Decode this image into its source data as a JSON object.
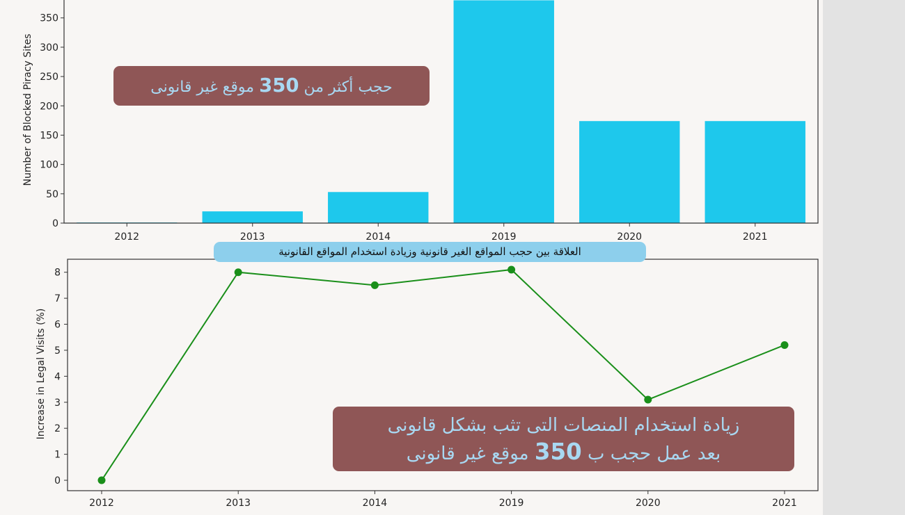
{
  "chart_data": [
    {
      "type": "bar",
      "categories": [
        "2012",
        "2013",
        "2014",
        "2019",
        "2020",
        "2021"
      ],
      "values": [
        1,
        20,
        53,
        380,
        174,
        174
      ],
      "ylabel": "Number of Blocked Piracy Sites",
      "yticks": [
        0,
        50,
        100,
        150,
        200,
        250,
        300,
        350
      ],
      "ylim": [
        0,
        390
      ],
      "color": "#1ec8ec",
      "annotation": {
        "before": "حجب أكثر من ",
        "number": "350",
        "after": " موقع غير قانونى"
      }
    },
    {
      "type": "line",
      "x": [
        "2012",
        "2013",
        "2014",
        "2019",
        "2020",
        "2021"
      ],
      "values": [
        0,
        8,
        7.5,
        8.1,
        3.1,
        5.2
      ],
      "ylabel": "Increase in Legal Visits (%)",
      "yticks": [
        0,
        1,
        2,
        3,
        4,
        5,
        6,
        7,
        8
      ],
      "ylim": [
        -0.4,
        8.5
      ],
      "color": "#1a8f1a",
      "banner": "العلاقة بين حجب المواقع الغير قانونية وزيادة استخدام المواقع القانونية",
      "annotation": {
        "line1": "زيادة استخدام المنصات التى تثب بشكل قانونى",
        "line2_before": "بعد عمل حجب ب ",
        "number": "350",
        "line2_after": " موقع غير قانونى"
      }
    }
  ]
}
